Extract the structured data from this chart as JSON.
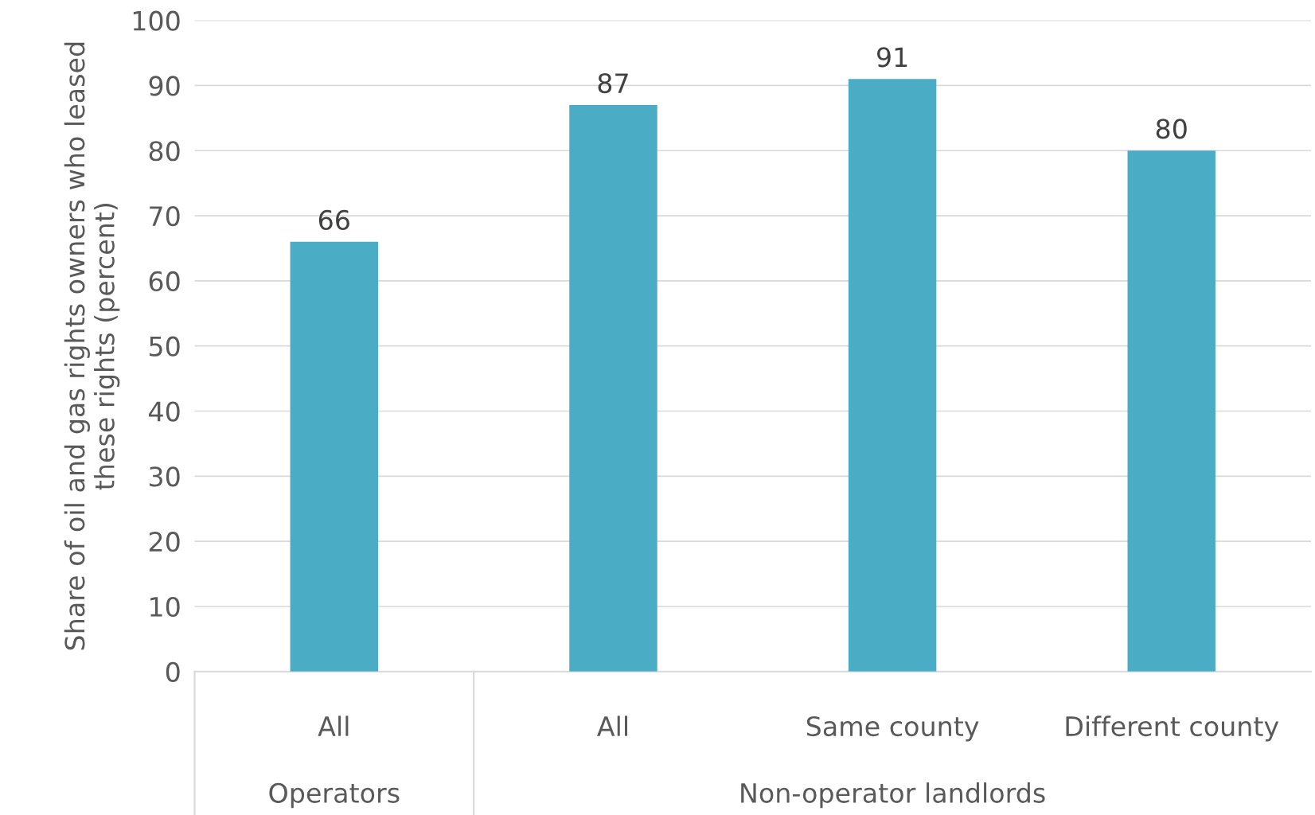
{
  "chart_data": {
    "type": "bar",
    "ylabel": "Share of oil and gas rights owners who leased these rights (percent)",
    "categories": [
      "All",
      "All",
      "Same county",
      "Different county"
    ],
    "values": [
      66,
      87,
      91,
      80
    ],
    "color": "#4bacc6",
    "data_labels": true,
    "ylim": [
      0,
      100
    ],
    "yticks": [
      0,
      10,
      20,
      30,
      40,
      50,
      60,
      70,
      80,
      90,
      100
    ],
    "grid": "y",
    "annotations": [
      "Operators",
      "Non-operator landlords"
    ]
  }
}
